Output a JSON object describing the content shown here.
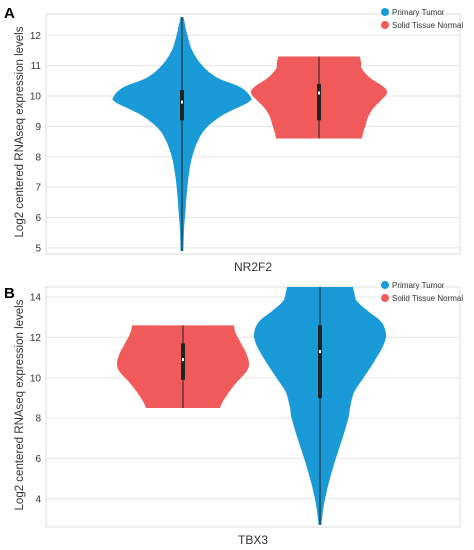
{
  "chart_data": [
    {
      "type": "violin",
      "panel_label": "A",
      "xlabel": "NR2F2",
      "ylabel": "Log2 centered RNAseq expression levels",
      "ylim": [
        4.8,
        12.7
      ],
      "yticks": [
        5,
        6,
        7,
        8,
        9,
        10,
        11,
        12
      ],
      "grid": true,
      "legend": {
        "position": "top-right",
        "entries": [
          {
            "label": "Primary Tumor",
            "color": "#1a9bd7"
          },
          {
            "label": "Solid Tissue Normal",
            "color": "#f05a5a"
          }
        ]
      },
      "series": [
        {
          "name": "Primary Tumor",
          "color": "#1a9bd7",
          "min": 4.9,
          "q1": 9.2,
          "median": 9.8,
          "q3": 10.2,
          "max": 12.6,
          "density": [
            [
              4.9,
              0.02
            ],
            [
              5.6,
              0.03
            ],
            [
              6.2,
              0.05
            ],
            [
              6.8,
              0.07
            ],
            [
              7.4,
              0.1
            ],
            [
              8.0,
              0.15
            ],
            [
              8.6,
              0.25
            ],
            [
              9.0,
              0.38
            ],
            [
              9.4,
              0.62
            ],
            [
              9.8,
              0.98
            ],
            [
              10.0,
              1.0
            ],
            [
              10.3,
              0.85
            ],
            [
              10.6,
              0.52
            ],
            [
              11.0,
              0.3
            ],
            [
              11.5,
              0.15
            ],
            [
              12.0,
              0.08
            ],
            [
              12.4,
              0.04
            ],
            [
              12.6,
              0.02
            ]
          ]
        },
        {
          "name": "Solid Tissue Normal",
          "color": "#f05a5a",
          "min": 8.6,
          "q1": 9.2,
          "median": 10.1,
          "q3": 10.4,
          "max": 11.3,
          "density": [
            [
              8.6,
              0.63
            ],
            [
              8.8,
              0.65
            ],
            [
              9.0,
              0.68
            ],
            [
              9.3,
              0.72
            ],
            [
              9.6,
              0.8
            ],
            [
              9.9,
              0.93
            ],
            [
              10.1,
              1.0
            ],
            [
              10.3,
              0.95
            ],
            [
              10.6,
              0.75
            ],
            [
              10.9,
              0.63
            ],
            [
              11.1,
              0.62
            ],
            [
              11.3,
              0.6
            ]
          ]
        }
      ]
    },
    {
      "type": "violin",
      "panel_label": "B",
      "xlabel": "TBX3",
      "ylabel": "Log2 centered RNAseq expression levels",
      "ylim": [
        2.6,
        14.5
      ],
      "yticks": [
        4,
        6,
        8,
        10,
        12,
        14
      ],
      "grid": true,
      "legend": {
        "position": "top-right",
        "entries": [
          {
            "label": "Primary Tumor",
            "color": "#1a9bd7"
          },
          {
            "label": "Solid Tissue Normal",
            "color": "#f05a5a"
          }
        ]
      },
      "series": [
        {
          "name": "Solid Tissue Normal",
          "color": "#f05a5a",
          "min": 8.5,
          "q1": 9.9,
          "median": 10.9,
          "q3": 11.7,
          "max": 12.6,
          "density": [
            [
              8.5,
              0.56
            ],
            [
              8.8,
              0.6
            ],
            [
              9.3,
              0.7
            ],
            [
              9.8,
              0.82
            ],
            [
              10.3,
              0.96
            ],
            [
              10.7,
              1.0
            ],
            [
              11.2,
              0.96
            ],
            [
              11.7,
              0.88
            ],
            [
              12.2,
              0.8
            ],
            [
              12.6,
              0.77
            ]
          ]
        },
        {
          "name": "Primary Tumor",
          "color": "#1a9bd7",
          "min": 2.7,
          "q1": 9.0,
          "median": 11.3,
          "q3": 12.6,
          "max": 14.5,
          "density": [
            [
              2.7,
              0.02
            ],
            [
              3.5,
              0.05
            ],
            [
              4.2,
              0.09
            ],
            [
              5.0,
              0.15
            ],
            [
              6.0,
              0.24
            ],
            [
              7.0,
              0.34
            ],
            [
              8.0,
              0.43
            ],
            [
              8.6,
              0.46
            ],
            [
              9.3,
              0.52
            ],
            [
              10.0,
              0.66
            ],
            [
              10.8,
              0.82
            ],
            [
              11.6,
              0.96
            ],
            [
              12.2,
              1.0
            ],
            [
              12.8,
              0.92
            ],
            [
              13.3,
              0.73
            ],
            [
              13.8,
              0.56
            ],
            [
              14.2,
              0.52
            ],
            [
              14.5,
              0.5
            ]
          ]
        }
      ]
    }
  ]
}
